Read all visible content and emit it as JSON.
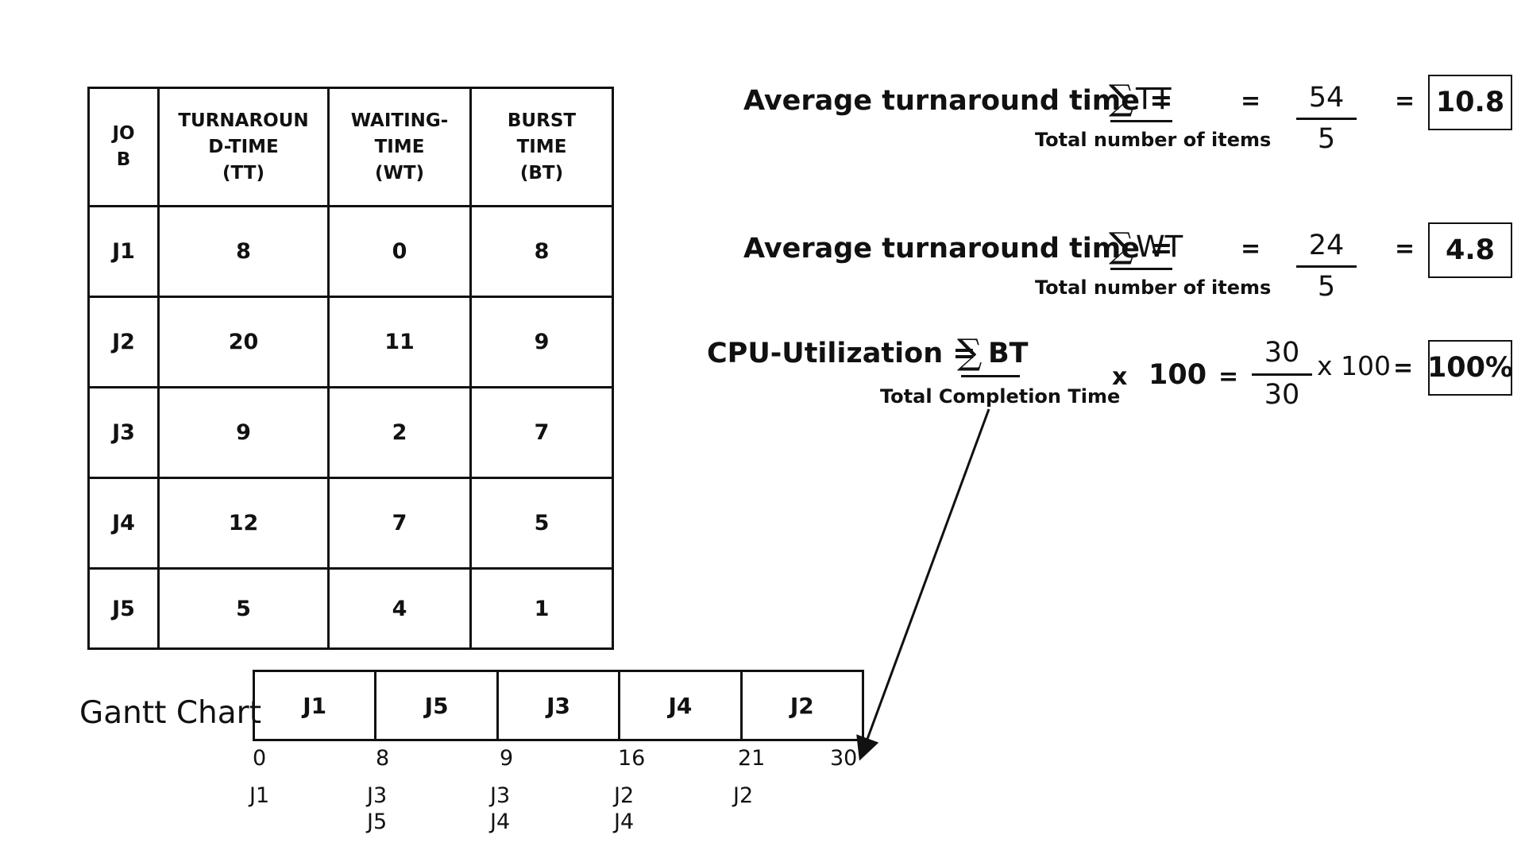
{
  "table": {
    "headers": [
      [
        "JO",
        "B"
      ],
      [
        "TURNAROUN",
        "D-TIME",
        "(TT)"
      ],
      [
        "WAITING-",
        "TIME",
        "(WT)"
      ],
      [
        "BURST",
        "TIME",
        "(BT)"
      ]
    ],
    "rows": [
      [
        "J1",
        "8",
        "0",
        "8"
      ],
      [
        "J2",
        "20",
        "11",
        "9"
      ],
      [
        "J3",
        "9",
        "2",
        "7"
      ],
      [
        "J4",
        "12",
        "7",
        "5"
      ],
      [
        "J5",
        "5",
        "4",
        "1"
      ]
    ]
  },
  "formulas": {
    "f1": {
      "label": "Average turnaround time =",
      "sigma": "∑",
      "sym": "TT",
      "note": "Total number of items",
      "eq1": "=",
      "numerator": "54",
      "denominator": "5",
      "eq2": "=",
      "result": "10.8"
    },
    "f2": {
      "label": "Average turnaround time =",
      "sigma": "∑",
      "sym": "WT",
      "note": "Total number of items",
      "eq1": "=",
      "numerator": "24",
      "denominator": "5",
      "eq2": "=",
      "result": "4.8"
    },
    "f3": {
      "label": "CPU-Utilization =",
      "sigma": "∑",
      "sym": "BT",
      "note": "Total Completion Time",
      "times": "x",
      "hundred": "100",
      "eq1": "=",
      "numerator": "30",
      "denominator": "30",
      "times2": "x 100",
      "eq2": "=",
      "result": "100%"
    }
  },
  "gantt": {
    "label": "Gantt Chart",
    "blocks": [
      "J1",
      "J5",
      "J3",
      "J4",
      "J2"
    ],
    "ticks": [
      "0",
      "8",
      "9",
      "16",
      "21",
      "30"
    ],
    "below": [
      [
        "J1"
      ],
      [
        "J3",
        "J5"
      ],
      [
        "J3",
        "J4"
      ],
      [
        "J2",
        "J4"
      ],
      [
        "J2"
      ]
    ]
  }
}
